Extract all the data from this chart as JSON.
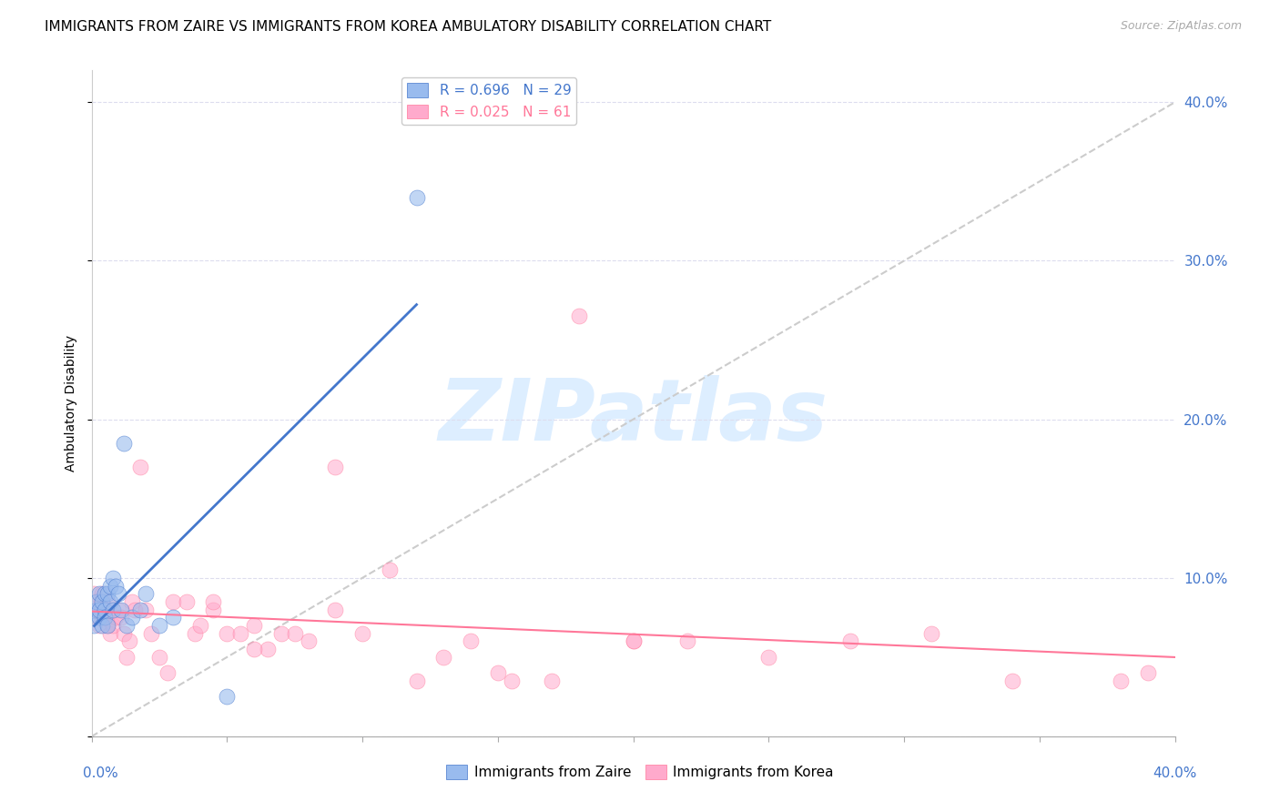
{
  "title": "IMMIGRANTS FROM ZAIRE VS IMMIGRANTS FROM KOREA AMBULATORY DISABILITY CORRELATION CHART",
  "source": "Source: ZipAtlas.com",
  "ylabel": "Ambulatory Disability",
  "xmin": 0.0,
  "xmax": 0.4,
  "ymin": 0.0,
  "ymax": 0.42,
  "zaire_R": 0.696,
  "zaire_N": 29,
  "korea_R": 0.025,
  "korea_N": 61,
  "zaire_color": "#99BBEE",
  "korea_color": "#FFAACC",
  "zaire_line_color": "#4477CC",
  "korea_line_color": "#FF7799",
  "diagonal_color": "#CCCCCC",
  "watermark_color": "#DDEEFF",
  "zaire_x": [
    0.001,
    0.002,
    0.002,
    0.003,
    0.003,
    0.003,
    0.004,
    0.004,
    0.005,
    0.005,
    0.005,
    0.006,
    0.006,
    0.007,
    0.007,
    0.008,
    0.008,
    0.009,
    0.01,
    0.011,
    0.012,
    0.013,
    0.015,
    0.018,
    0.02,
    0.025,
    0.03,
    0.05,
    0.12
  ],
  "zaire_y": [
    0.07,
    0.08,
    0.085,
    0.075,
    0.08,
    0.09,
    0.085,
    0.07,
    0.09,
    0.08,
    0.075,
    0.09,
    0.07,
    0.095,
    0.085,
    0.1,
    0.08,
    0.095,
    0.09,
    0.08,
    0.185,
    0.07,
    0.075,
    0.08,
    0.09,
    0.07,
    0.075,
    0.025,
    0.34
  ],
  "korea_x": [
    0.001,
    0.001,
    0.002,
    0.002,
    0.003,
    0.003,
    0.004,
    0.004,
    0.005,
    0.005,
    0.006,
    0.006,
    0.007,
    0.008,
    0.009,
    0.01,
    0.011,
    0.012,
    0.013,
    0.014,
    0.015,
    0.016,
    0.018,
    0.02,
    0.022,
    0.025,
    0.028,
    0.03,
    0.035,
    0.038,
    0.04,
    0.045,
    0.05,
    0.055,
    0.06,
    0.065,
    0.07,
    0.08,
    0.09,
    0.1,
    0.11,
    0.12,
    0.13,
    0.14,
    0.155,
    0.17,
    0.18,
    0.2,
    0.22,
    0.25,
    0.28,
    0.31,
    0.34,
    0.38,
    0.39,
    0.045,
    0.06,
    0.075,
    0.09,
    0.15,
    0.2
  ],
  "korea_y": [
    0.085,
    0.09,
    0.08,
    0.075,
    0.08,
    0.07,
    0.085,
    0.09,
    0.08,
    0.075,
    0.07,
    0.085,
    0.065,
    0.07,
    0.075,
    0.08,
    0.075,
    0.065,
    0.05,
    0.06,
    0.085,
    0.08,
    0.17,
    0.08,
    0.065,
    0.05,
    0.04,
    0.085,
    0.085,
    0.065,
    0.07,
    0.08,
    0.065,
    0.065,
    0.07,
    0.055,
    0.065,
    0.06,
    0.17,
    0.065,
    0.105,
    0.035,
    0.05,
    0.06,
    0.035,
    0.035,
    0.265,
    0.06,
    0.06,
    0.05,
    0.06,
    0.065,
    0.035,
    0.035,
    0.04,
    0.085,
    0.055,
    0.065,
    0.08,
    0.04,
    0.06
  ],
  "title_fontsize": 11,
  "axis_label_fontsize": 10,
  "tick_fontsize": 11,
  "right_tick_color": "#4477CC",
  "bottom_tick_color": "#4477CC"
}
